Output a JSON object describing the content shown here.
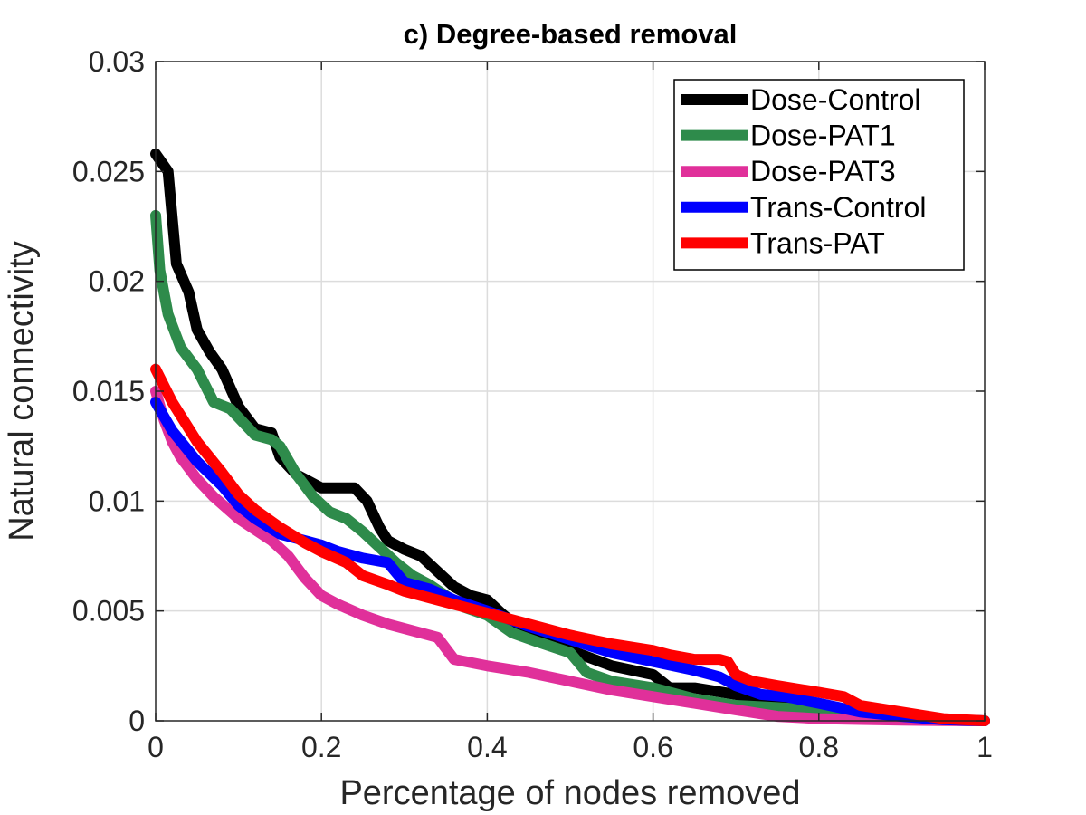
{
  "chart_data": {
    "type": "line",
    "title": "c) Degree-based removal",
    "xlabel": "Percentage of nodes removed",
    "ylabel": "Natural connectivity",
    "xlim": [
      0,
      1
    ],
    "ylim": [
      0,
      0.03
    ],
    "xticks": [
      0,
      0.2,
      0.4,
      0.6,
      0.8,
      1
    ],
    "xtick_labels": [
      "0",
      "0.2",
      "0.4",
      "0.6",
      "0.8",
      "1"
    ],
    "yticks": [
      0,
      0.005,
      0.01,
      0.015,
      0.02,
      0.025,
      0.03
    ],
    "ytick_labels": [
      "0",
      "0.005",
      "0.01",
      "0.015",
      "0.02",
      "0.025",
      "0.03"
    ],
    "grid": true,
    "legend_position": "top-right",
    "series": [
      {
        "name": "Dose-Control",
        "color": "#000000",
        "x": [
          0,
          0.015,
          0.025,
          0.04,
          0.05,
          0.065,
          0.08,
          0.1,
          0.12,
          0.14,
          0.15,
          0.17,
          0.19,
          0.2,
          0.22,
          0.24,
          0.255,
          0.27,
          0.28,
          0.3,
          0.32,
          0.34,
          0.36,
          0.38,
          0.4,
          0.42,
          0.44,
          0.46,
          0.5,
          0.55,
          0.6,
          0.62,
          0.65,
          0.7,
          0.75,
          0.8,
          0.85,
          0.9,
          0.95,
          1.0
        ],
        "y": [
          0.0258,
          0.025,
          0.0208,
          0.0195,
          0.0178,
          0.0168,
          0.016,
          0.0143,
          0.0133,
          0.0131,
          0.012,
          0.0112,
          0.0108,
          0.0106,
          0.0106,
          0.0106,
          0.01,
          0.0088,
          0.0082,
          0.0078,
          0.0075,
          0.0068,
          0.0061,
          0.0057,
          0.0055,
          0.0048,
          0.0042,
          0.0037,
          0.0032,
          0.0025,
          0.0021,
          0.0015,
          0.0015,
          0.0012,
          0.0007,
          0.0005,
          0.0003,
          0.0001,
          3e-05,
          0.0
        ]
      },
      {
        "name": "Dose-PAT1",
        "color": "#2e8b4b",
        "x": [
          0,
          0.005,
          0.015,
          0.03,
          0.05,
          0.07,
          0.09,
          0.1,
          0.12,
          0.14,
          0.15,
          0.17,
          0.19,
          0.21,
          0.23,
          0.25,
          0.27,
          0.29,
          0.31,
          0.33,
          0.35,
          0.37,
          0.4,
          0.43,
          0.46,
          0.5,
          0.52,
          0.55,
          0.6,
          0.65,
          0.7,
          0.75,
          0.8,
          0.85,
          0.9,
          0.95,
          1.0
        ],
        "y": [
          0.023,
          0.0205,
          0.0185,
          0.017,
          0.016,
          0.0145,
          0.0142,
          0.0138,
          0.013,
          0.0128,
          0.0125,
          0.0112,
          0.0102,
          0.0095,
          0.0092,
          0.0086,
          0.0079,
          0.0072,
          0.0066,
          0.0062,
          0.0057,
          0.0052,
          0.0048,
          0.004,
          0.0036,
          0.0031,
          0.0022,
          0.0018,
          0.0015,
          0.001,
          0.0007,
          0.0006,
          0.0005,
          0.0003,
          0.0001,
          3e-05,
          0.0
        ]
      },
      {
        "name": "Dose-PAT3",
        "color": "#e0309a",
        "x": [
          0,
          0.01,
          0.02,
          0.03,
          0.05,
          0.07,
          0.1,
          0.12,
          0.14,
          0.16,
          0.18,
          0.2,
          0.22,
          0.25,
          0.28,
          0.3,
          0.32,
          0.34,
          0.36,
          0.4,
          0.45,
          0.5,
          0.55,
          0.6,
          0.65,
          0.7,
          0.75,
          0.8,
          0.85,
          0.9,
          0.95,
          1.0
        ],
        "y": [
          0.015,
          0.0137,
          0.0127,
          0.012,
          0.011,
          0.0102,
          0.0092,
          0.0087,
          0.0082,
          0.0075,
          0.0065,
          0.0057,
          0.0053,
          0.0048,
          0.0044,
          0.0042,
          0.004,
          0.0038,
          0.0028,
          0.0025,
          0.0022,
          0.0018,
          0.0014,
          0.0011,
          0.0008,
          0.0005,
          0.0002,
          0.0001,
          6e-05,
          3e-05,
          1e-05,
          0.0
        ]
      },
      {
        "name": "Trans-Control",
        "color": "#0000ff",
        "x": [
          0,
          0.02,
          0.05,
          0.08,
          0.1,
          0.12,
          0.15,
          0.18,
          0.2,
          0.22,
          0.25,
          0.28,
          0.3,
          0.33,
          0.36,
          0.4,
          0.45,
          0.5,
          0.55,
          0.6,
          0.65,
          0.68,
          0.7,
          0.73,
          0.76,
          0.8,
          0.85,
          0.9,
          0.95,
          1.0
        ],
        "y": [
          0.0145,
          0.0132,
          0.0118,
          0.0107,
          0.0098,
          0.0092,
          0.0085,
          0.0082,
          0.008,
          0.0077,
          0.0074,
          0.0072,
          0.0063,
          0.006,
          0.0055,
          0.005,
          0.0043,
          0.0037,
          0.0031,
          0.0027,
          0.0023,
          0.002,
          0.0016,
          0.0012,
          0.0011,
          0.0008,
          0.0004,
          0.0002,
          5e-05,
          0.0
        ]
      },
      {
        "name": "Trans-PAT",
        "color": "#ff0000",
        "x": [
          0,
          0.02,
          0.05,
          0.08,
          0.1,
          0.12,
          0.15,
          0.18,
          0.2,
          0.23,
          0.25,
          0.28,
          0.3,
          0.35,
          0.4,
          0.45,
          0.5,
          0.55,
          0.6,
          0.62,
          0.65,
          0.68,
          0.69,
          0.7,
          0.72,
          0.75,
          0.8,
          0.83,
          0.85,
          0.9,
          0.95,
          1.0
        ],
        "y": [
          0.016,
          0.0145,
          0.0127,
          0.0113,
          0.0103,
          0.0096,
          0.0088,
          0.0081,
          0.0077,
          0.0072,
          0.0066,
          0.0062,
          0.0059,
          0.0054,
          0.0049,
          0.0044,
          0.0039,
          0.0035,
          0.0032,
          0.003,
          0.0028,
          0.0028,
          0.0027,
          0.0021,
          0.0018,
          0.0016,
          0.0013,
          0.0011,
          0.0007,
          0.0004,
          0.0001,
          0.0
        ]
      }
    ]
  }
}
